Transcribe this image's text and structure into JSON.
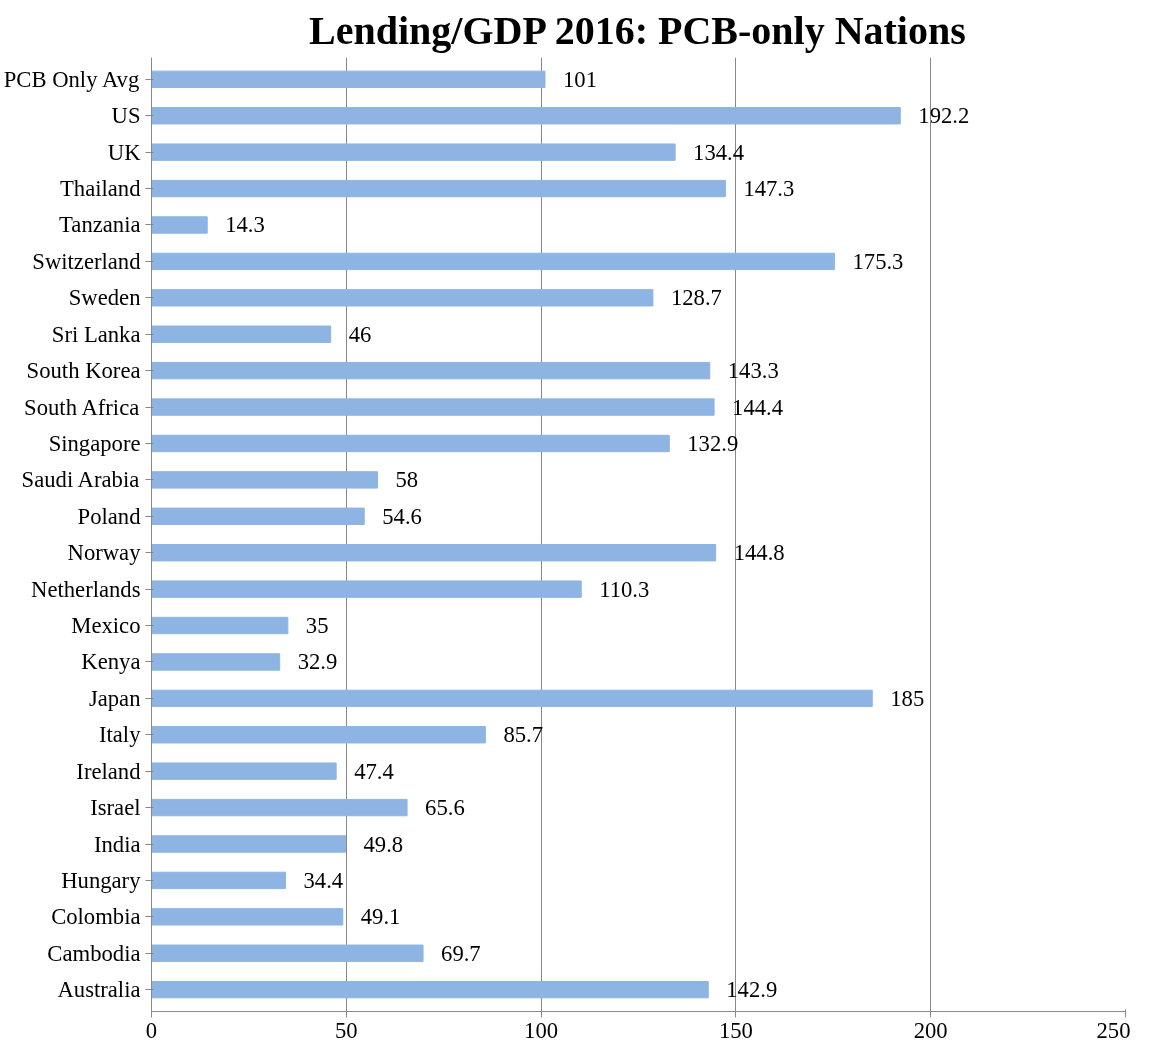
{
  "chart_data": {
    "type": "bar",
    "orientation": "horizontal",
    "title": "Lending/GDP 2016: PCB-only Nations",
    "categories": [
      "PCB Only Avg",
      "US",
      "UK",
      "Thailand",
      "Tanzania",
      "Switzerland",
      "Sweden",
      "Sri Lanka",
      "South Korea",
      "South Africa",
      "Singapore",
      "Saudi Arabia",
      "Poland",
      "Norway",
      "Netherlands",
      "Mexico",
      "Kenya",
      "Japan",
      "Italy",
      "Ireland",
      "Israel",
      "India",
      "Hungary",
      "Colombia",
      "Cambodia",
      "Australia"
    ],
    "values": [
      101,
      192.2,
      134.4,
      147.3,
      14.3,
      175.3,
      128.7,
      46,
      143.3,
      144.4,
      132.9,
      58,
      54.6,
      144.8,
      110.3,
      35,
      32.9,
      185,
      85.7,
      47.4,
      65.6,
      49.8,
      34.4,
      49.1,
      69.7,
      142.9
    ],
    "color": "#8db4e2",
    "xlim": [
      0,
      250
    ],
    "xticks": [
      0,
      50,
      100,
      150,
      200,
      250
    ],
    "grid": "x",
    "data_labels": true
  }
}
